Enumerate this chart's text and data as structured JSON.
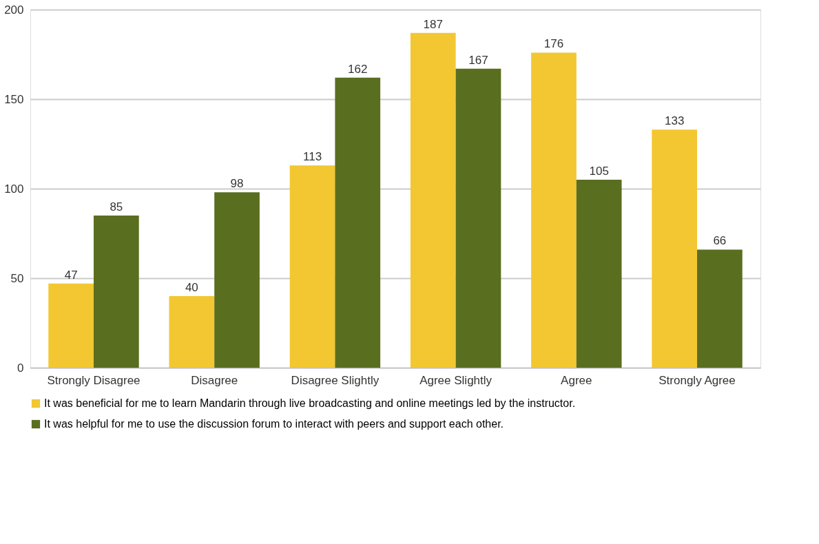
{
  "chart_data": {
    "type": "bar",
    "categories": [
      "Strongly Disagree",
      "Disagree",
      "Disagree Slightly",
      "Agree Slightly",
      "Agree",
      "Strongly Agree"
    ],
    "series": [
      {
        "name": "It was beneficial for me to learn Mandarin through live broadcasting and online meetings led by the instructor.",
        "color": "#f2c731",
        "values": [
          47,
          40,
          113,
          187,
          176,
          133
        ]
      },
      {
        "name": "It was helpful for me to use the discussion forum to interact with peers and support each other.",
        "color": "#5a6e1f",
        "values": [
          85,
          98,
          162,
          167,
          105,
          66
        ]
      }
    ],
    "ylim": [
      0,
      200
    ],
    "yticks": [
      0,
      50,
      100,
      150,
      200
    ],
    "grid": "y",
    "legend": "bottom",
    "data_labels": true
  }
}
